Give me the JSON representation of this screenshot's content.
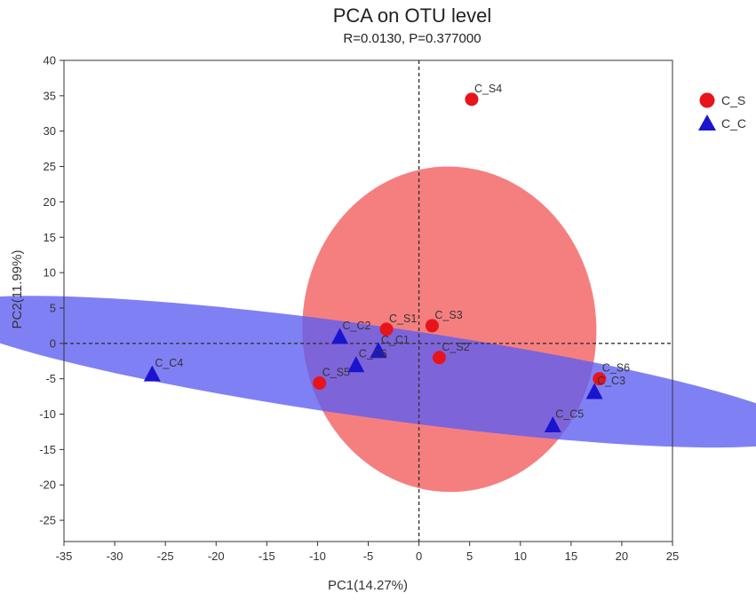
{
  "chart_data": {
    "type": "scatter",
    "title": "PCA on OTU level",
    "subtitle": "R=0.0130, P=0.377000",
    "xlabel": "PC1(14.27%)",
    "ylabel": "PC2(11.99%)",
    "xlim": [
      -35,
      25
    ],
    "ylim": [
      -28,
      40
    ],
    "xticks": [
      -35,
      -30,
      -25,
      -20,
      -15,
      -10,
      -5,
      0,
      5,
      10,
      15,
      20,
      25
    ],
    "yticks": [
      -25,
      -20,
      -15,
      -10,
      -5,
      0,
      5,
      10,
      15,
      20,
      25,
      30,
      35,
      40
    ],
    "zero_lines": true,
    "legend_position": "top-right",
    "series": [
      {
        "name": "C_S",
        "marker": "circle",
        "color": "#e8141b",
        "ellipse": {
          "cx": 3.0,
          "cy": 2.0,
          "rx": 14.5,
          "ry": 23.0,
          "angle": 2,
          "color": "#f25b5b"
        },
        "points": [
          {
            "label": "C_S1",
            "x": -3.2,
            "y": 2.0
          },
          {
            "label": "C_S2",
            "x": 2.0,
            "y": -2.0
          },
          {
            "label": "C_S3",
            "x": 1.3,
            "y": 2.5
          },
          {
            "label": "C_S4",
            "x": 5.2,
            "y": 34.5
          },
          {
            "label": "C_S5",
            "x": -9.8,
            "y": -5.6
          },
          {
            "label": "C_S6",
            "x": 17.8,
            "y": -5.0
          }
        ]
      },
      {
        "name": "C_C",
        "marker": "triangle",
        "color": "#1a14cf",
        "ellipse": {
          "cx": -4.5,
          "cy": -4.0,
          "rx": 43.0,
          "ry": 6.5,
          "angle": -8,
          "color": "#5c5cf2"
        },
        "points": [
          {
            "label": "C_C1",
            "x": -4.0,
            "y": -1.0
          },
          {
            "label": "C_C2",
            "x": -7.8,
            "y": 1.0
          },
          {
            "label": "C_C3",
            "x": 17.3,
            "y": -6.8
          },
          {
            "label": "C_C4",
            "x": -26.3,
            "y": -4.3
          },
          {
            "label": "C_C5",
            "x": 13.2,
            "y": -11.5
          },
          {
            "label": "C_C6",
            "x": -6.2,
            "y": -3.0
          }
        ]
      }
    ]
  }
}
